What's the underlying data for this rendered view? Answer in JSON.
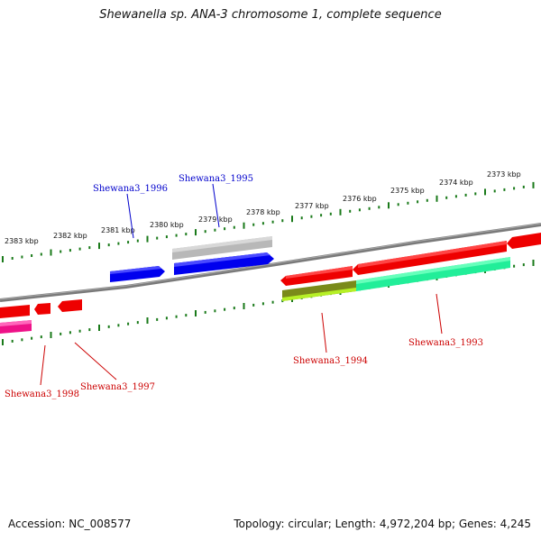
{
  "title": "Shewanella sp. ANA-3 chromosome 1, complete sequence",
  "footer": {
    "accession": "Accession: NC_008577",
    "summary": "Topology: circular; Length: 4,972,204 bp; Genes: 4,245"
  },
  "colors": {
    "backbone": "#808080",
    "ticks": "#1a7a1a",
    "forward_label": "#0000cc",
    "reverse_label": "#cc0000"
  },
  "scale": {
    "labels": [
      "2383 kbp",
      "2382 kbp",
      "2381 kbp",
      "2380 kbp",
      "2379 kbp",
      "2378 kbp",
      "2377 kbp",
      "2376 kbp",
      "2375 kbp",
      "2374 kbp",
      "2373 kbp"
    ]
  },
  "genes": {
    "forward": [
      {
        "label": "Shewana3_1996",
        "color": "#0000ee"
      },
      {
        "label": "Shewana3_1995",
        "color": "#0000ee"
      },
      {
        "label": "",
        "color": "#b0b0b0"
      }
    ],
    "reverse": [
      {
        "label": "Shewana3_1998",
        "color": "#ee0000"
      },
      {
        "label": "Shewana3_1997",
        "color": "#ee0000"
      },
      {
        "label": "Shewana3_1994",
        "color": "#ee0000"
      },
      {
        "label": "Shewana3_1993",
        "color": "#ee0000"
      }
    ],
    "features": [
      {
        "name": "magenta-feature",
        "color": "#ee1188"
      },
      {
        "name": "olive-feature",
        "color": "#7a8a1a"
      },
      {
        "name": "green-feature",
        "color": "#22ee99"
      }
    ]
  }
}
